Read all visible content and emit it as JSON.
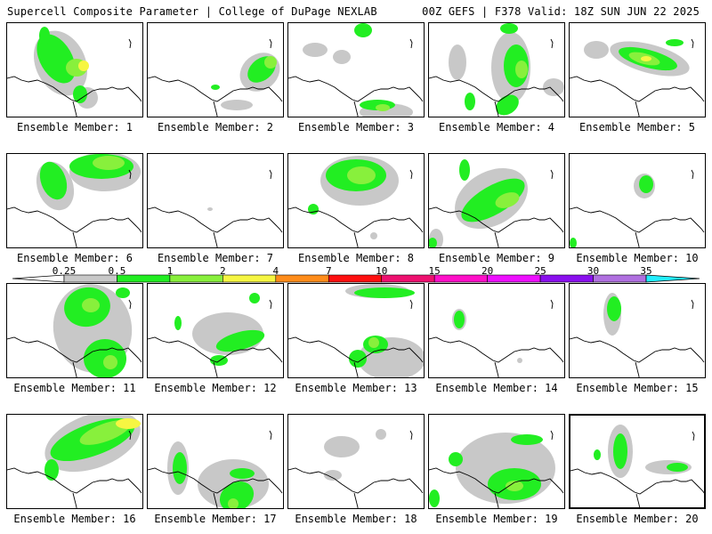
{
  "header": {
    "left_title": "Supercell Composite Parameter | College of DuPage NEXLAB",
    "right_title": "00Z GEFS | F378 Valid: 18Z SUN JUN 22 2025"
  },
  "colors": {
    "light_gray": "#c8c8c8",
    "green": "#22ee22",
    "light_green": "#88f03c",
    "yellow": "#f6f642",
    "orange": "#ff8c1a",
    "red": "#ff1010",
    "crimson": "#ee1170",
    "magenta": "#ff10c8",
    "violet": "#ee10ff",
    "purple": "#8a10ee",
    "lavender": "#b070e0",
    "cyan": "#22eeff"
  },
  "colorbar": {
    "ticks": [
      "0.25",
      "0.5",
      "1",
      "2",
      "4",
      "7",
      "10",
      "15",
      "20",
      "25",
      "30",
      "35"
    ],
    "bins": [
      "#c8c8c8",
      "#22ee22",
      "#88f03c",
      "#f6f642",
      "#ff8c1a",
      "#ff1010",
      "#ee1170",
      "#ff10c8",
      "#ee10ff",
      "#8a10ee",
      "#b070e0"
    ],
    "under_color": "#ffffff",
    "over_color": "#22eeff"
  },
  "panels": [
    {
      "label": "Ensemble Member: 1",
      "highlight": false
    },
    {
      "label": "Ensemble Member: 2",
      "highlight": false
    },
    {
      "label": "Ensemble Member: 3",
      "highlight": false
    },
    {
      "label": "Ensemble Member: 4",
      "highlight": false
    },
    {
      "label": "Ensemble Member: 5",
      "highlight": false
    },
    {
      "label": "Ensemble Member: 6",
      "highlight": false
    },
    {
      "label": "Ensemble Member: 7",
      "highlight": false
    },
    {
      "label": "Ensemble Member: 8",
      "highlight": false
    },
    {
      "label": "Ensemble Member: 9",
      "highlight": false
    },
    {
      "label": "Ensemble Member: 10",
      "highlight": false
    },
    {
      "label": "Ensemble Member: 11",
      "highlight": false
    },
    {
      "label": "Ensemble Member: 12",
      "highlight": false
    },
    {
      "label": "Ensemble Member: 13",
      "highlight": false
    },
    {
      "label": "Ensemble Member: 14",
      "highlight": false
    },
    {
      "label": "Ensemble Member: 15",
      "highlight": false
    },
    {
      "label": "Ensemble Member: 16",
      "highlight": false
    },
    {
      "label": "Ensemble Member: 17",
      "highlight": false
    },
    {
      "label": "Ensemble Member: 18",
      "highlight": false
    },
    {
      "label": "Ensemble Member: 19",
      "highlight": false
    },
    {
      "label": "Ensemble Member: 20",
      "highlight": true
    }
  ]
}
